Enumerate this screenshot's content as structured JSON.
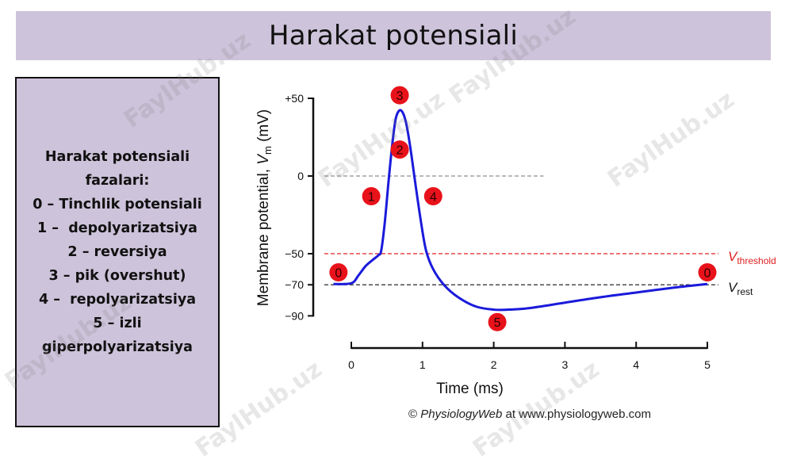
{
  "title": "Harakat potensiali",
  "info": {
    "lines": [
      "Harakat potensiali",
      "fazalari:",
      "0 – Tinchlik potensiali",
      "1 –  depolyarizatsiya",
      "2 – reversiya",
      "3 – pik (overshut)",
      "4 –  repolyarizatsiya",
      "5 – izli",
      "giperpolyarizatsiya"
    ]
  },
  "watermark": "FaylHub.uz",
  "chart_data": {
    "type": "line",
    "title": "",
    "xlabel": "Time (ms)",
    "ylabel_main": "Membrane potential, ",
    "ylabel_var": "V",
    "ylabel_sub": "m",
    "ylabel_unit": " (mV)",
    "xlim": [
      0,
      5
    ],
    "ylim": [
      -90,
      50
    ],
    "xticks": [
      0,
      1,
      2,
      3,
      4,
      5
    ],
    "yticks": [
      {
        "value": 50,
        "label": "+50"
      },
      {
        "value": 0,
        "label": "0"
      },
      {
        "value": -50,
        "label": "−50"
      },
      {
        "value": -70,
        "label": "−70"
      },
      {
        "value": -90,
        "label": "−90"
      }
    ],
    "series": [
      {
        "color": "#1a1adb",
        "points": [
          [
            -0.25,
            -69.5
          ],
          [
            0.0,
            -69
          ],
          [
            0.1,
            -64
          ],
          [
            0.2,
            -58
          ],
          [
            0.3,
            -54
          ],
          [
            0.38,
            -51
          ],
          [
            0.42,
            -48
          ],
          [
            0.47,
            -30
          ],
          [
            0.52,
            -5
          ],
          [
            0.57,
            18
          ],
          [
            0.62,
            36
          ],
          [
            0.67,
            42
          ],
          [
            0.72,
            41
          ],
          [
            0.77,
            34
          ],
          [
            0.83,
            18
          ],
          [
            0.9,
            -5
          ],
          [
            0.98,
            -30
          ],
          [
            1.05,
            -48
          ],
          [
            1.15,
            -60
          ],
          [
            1.3,
            -70
          ],
          [
            1.5,
            -78
          ],
          [
            1.75,
            -84
          ],
          [
            2.0,
            -86
          ],
          [
            2.2,
            -86
          ],
          [
            2.5,
            -85
          ],
          [
            3.0,
            -81.5
          ],
          [
            3.5,
            -78
          ],
          [
            4.0,
            -75
          ],
          [
            4.5,
            -72
          ],
          [
            5.0,
            -69.5
          ]
        ]
      }
    ],
    "reference_lines": [
      {
        "name": "zero",
        "value": 0,
        "color": "#8f8f8f",
        "x_end": 2.7
      },
      {
        "name": "threshold",
        "value": -50,
        "color": "#e02020",
        "label_main": "V",
        "label_sub": "threshold"
      },
      {
        "name": "rest",
        "value": -70,
        "color": "#111111",
        "label_main": "V",
        "label_sub": "rest"
      }
    ],
    "phase_markers": [
      {
        "label": "0",
        "x": -0.18,
        "y": -62
      },
      {
        "label": "1",
        "x": 0.28,
        "y": -13
      },
      {
        "label": "2",
        "x": 0.68,
        "y": 17
      },
      {
        "label": "3",
        "x": 0.68,
        "y": 52
      },
      {
        "label": "4",
        "x": 1.15,
        "y": -13
      },
      {
        "label": "5",
        "x": 2.05,
        "y": -94
      },
      {
        "label": "0",
        "x": 5.0,
        "y": -62
      }
    ],
    "marker_color": "#e8121a",
    "credit_prefix": "© ",
    "credit_brand": "PhysiologyWeb",
    "credit_suffix": " at www.physiologyweb.com"
  }
}
